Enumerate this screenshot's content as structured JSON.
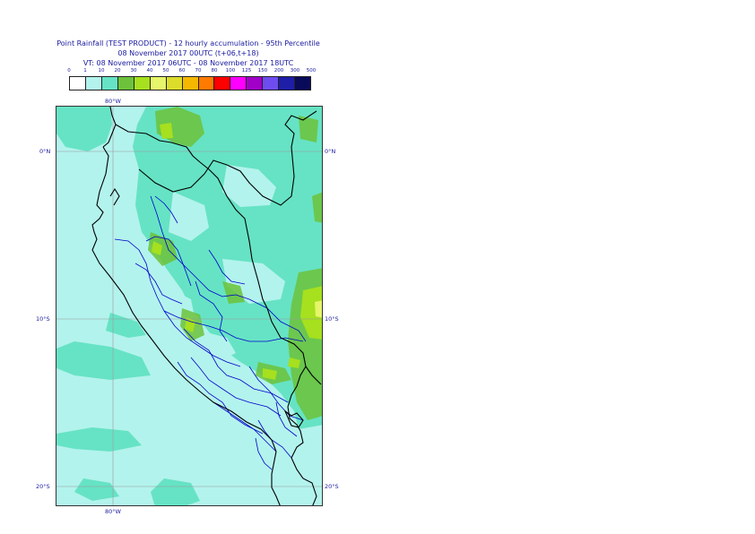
{
  "title": {
    "line1": "Point Rainfall (TEST PRODUCT) - 12 hourly accumulation - 95th Percentile",
    "line2": "08 November 2017 00UTC (t+06,t+18)",
    "line3": "VT: 08 November 2017 06UTC - 08 November 2017 18UTC"
  },
  "legend": {
    "thresholds": [
      "0",
      "1",
      "10",
      "20",
      "30",
      "40",
      "50",
      "60",
      "70",
      "80",
      "100",
      "125",
      "150",
      "200",
      "300",
      "500"
    ],
    "colors": [
      "#ffffff",
      "#b3f3ed",
      "#66e3c4",
      "#6cc23a",
      "#a6e01e",
      "#e6f56a",
      "#dcdc2a",
      "#f5b800",
      "#ff7a00",
      "#ff0000",
      "#ff00ff",
      "#a000c8",
      "#6e4cf0",
      "#1e1ea8",
      "#0a0a5a"
    ]
  },
  "axes": {
    "lon_top": "80°W",
    "lon_bottom": "80°W",
    "lat_labels": [
      "0°N",
      "10°S",
      "20°S"
    ]
  },
  "map_colors": {
    "sea": "#b3f3ed",
    "light_rain": "#66e3c4",
    "moderate_rain": "#6cc23a",
    "heavy_rain": "#a6e01e",
    "very_heavy_rain": "#e6f56a",
    "country_border": "#000000",
    "region_border": "#0000cc",
    "grid": "#9a9a9a"
  }
}
